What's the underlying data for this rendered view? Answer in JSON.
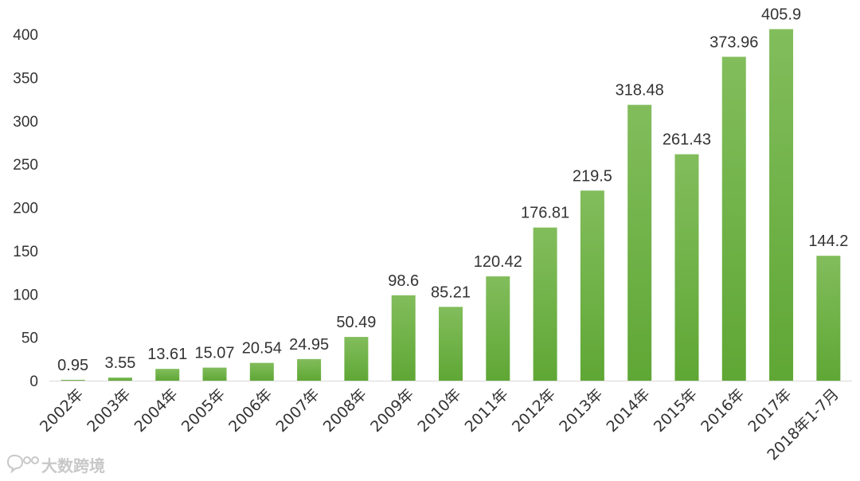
{
  "chart_data": {
    "type": "bar",
    "title": "",
    "xlabel": "",
    "ylabel": "",
    "ylim": [
      0,
      400
    ],
    "yticks": [
      0,
      50,
      100,
      150,
      200,
      250,
      300,
      350,
      400
    ],
    "grid": false,
    "legend": "none",
    "categories": [
      "2002年",
      "2003年",
      "2004年",
      "2005年",
      "2006年",
      "2007年",
      "2008年",
      "2009年",
      "2010年",
      "2011年",
      "2012年",
      "2013年",
      "2014年",
      "2015年",
      "2016年",
      "2017年",
      "2018年1-7月"
    ],
    "values": [
      0.95,
      3.55,
      13.61,
      15.07,
      20.54,
      24.95,
      50.49,
      98.6,
      85.21,
      120.42,
      176.81,
      219.5,
      318.48,
      261.43,
      373.96,
      405.9,
      144.2
    ],
    "value_labels": [
      "0.95",
      "3.55",
      "13.61",
      "15.07",
      "20.54",
      "24.95",
      "50.49",
      "98.6",
      "85.21",
      "120.42",
      "176.81",
      "219.5",
      "318.48",
      "261.43",
      "373.96",
      "405.9",
      "144.2"
    ],
    "colors": {
      "bar_top": "#82bd5c",
      "bar_bottom": "#5fa735",
      "text": "#333333"
    }
  },
  "watermark": {
    "text": "大数跨境",
    "icon": "chat-bubble-logo-icon"
  }
}
